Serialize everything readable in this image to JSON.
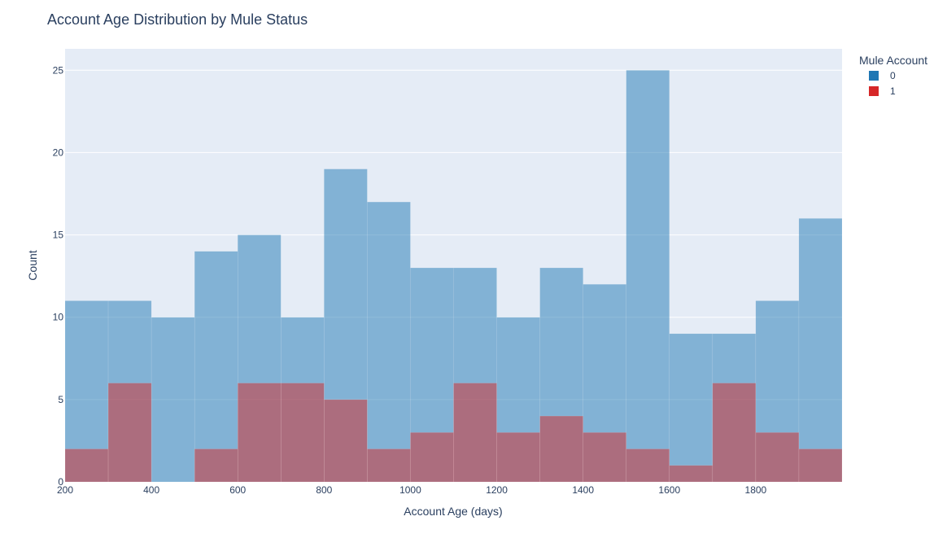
{
  "chart_data": {
    "type": "bar",
    "title": "Account Age Distribution by Mule Status",
    "xlabel": "Account Age (days)",
    "ylabel": "Count",
    "xlim": [
      200,
      2000
    ],
    "ylim": [
      0,
      26.3
    ],
    "x_ticks": [
      200,
      400,
      600,
      800,
      1000,
      1200,
      1400,
      1600,
      1800
    ],
    "y_ticks": [
      0,
      5,
      10,
      15,
      20,
      25
    ],
    "bin_width": 100,
    "bins": [
      [
        200,
        300
      ],
      [
        300,
        400
      ],
      [
        400,
        500
      ],
      [
        500,
        600
      ],
      [
        600,
        700
      ],
      [
        700,
        800
      ],
      [
        800,
        900
      ],
      [
        900,
        1000
      ],
      [
        1000,
        1100
      ],
      [
        1100,
        1200
      ],
      [
        1200,
        1300
      ],
      [
        1300,
        1400
      ],
      [
        1400,
        1500
      ],
      [
        1500,
        1600
      ],
      [
        1600,
        1700
      ],
      [
        1700,
        1800
      ],
      [
        1800,
        1900
      ],
      [
        1900,
        2000
      ]
    ],
    "grid": true,
    "barmode": "overlay",
    "legend_title": "Mule Account",
    "legend_position": "top-right",
    "series": [
      {
        "name": "0",
        "color": "#1f77b4",
        "opacity": 0.5,
        "values": [
          11,
          11,
          10,
          14,
          15,
          10,
          19,
          17,
          13,
          13,
          10,
          13,
          12,
          25,
          9,
          9,
          11,
          16
        ]
      },
      {
        "name": "1",
        "color": "#d62728",
        "opacity": 0.5,
        "values": [
          2,
          6,
          0,
          2,
          6,
          6,
          5,
          2,
          3,
          6,
          3,
          4,
          3,
          2,
          1,
          6,
          3,
          2
        ]
      }
    ]
  }
}
